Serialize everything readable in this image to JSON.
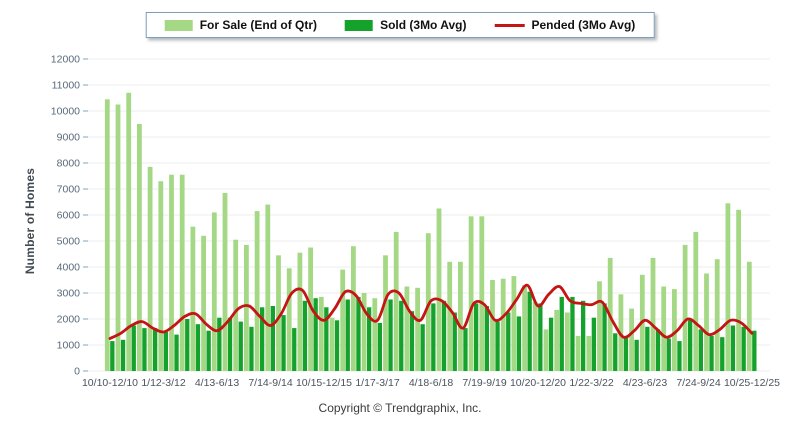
{
  "legend": {
    "items": [
      {
        "id": "forsale",
        "label": "For Sale (End of Qtr)",
        "color": "#A5D885",
        "swatch": "box"
      },
      {
        "id": "sold",
        "label": "Sold (3Mo Avg)",
        "color": "#14A22C",
        "swatch": "box"
      },
      {
        "id": "pended",
        "label": "Pended (3Mo Avg)",
        "color": "#C41414",
        "swatch": "line"
      }
    ]
  },
  "y_axis": {
    "title": "Number of Homes"
  },
  "footer": {
    "copyright": "Copyright © Trendgraphix, Inc."
  },
  "colors": {
    "grid": "#ececec",
    "y_tick_text": "#5a6a7a",
    "x_tick_text": "#4a545e",
    "tick_mark": "#a9c4d8",
    "background": "#ffffff"
  },
  "chart_data": {
    "type": "bar",
    "subtype": "grouped-bars-with-line-overlay",
    "title": "",
    "xlabel": "",
    "ylabel": "Number of Homes",
    "ylim": [
      0,
      12000
    ],
    "ytick_step": 1000,
    "yticks": [
      0,
      1000,
      2000,
      3000,
      4000,
      5000,
      6000,
      7000,
      8000,
      9000,
      10000,
      11000,
      12000
    ],
    "grid": true,
    "legend_position": "top-center",
    "n_points": 61,
    "x_axis_labels": [
      {
        "index": 0,
        "label": "10/10-12/10"
      },
      {
        "index": 5,
        "label": "1/12-3/12"
      },
      {
        "index": 10,
        "label": "4/13-6/13"
      },
      {
        "index": 15,
        "label": "7/14-9/14"
      },
      {
        "index": 20,
        "label": "10/15-12/15"
      },
      {
        "index": 25,
        "label": "1/17-3/17"
      },
      {
        "index": 30,
        "label": "4/18-6/18"
      },
      {
        "index": 35,
        "label": "7/19-9/19"
      },
      {
        "index": 40,
        "label": "10/20-12/20"
      },
      {
        "index": 45,
        "label": "1/22-3/22"
      },
      {
        "index": 50,
        "label": "4/23-6/23"
      },
      {
        "index": 55,
        "label": "7/24-9/24"
      },
      {
        "index": 60,
        "label": "10/25-12/25"
      }
    ],
    "series": [
      {
        "name": "For Sale (End of Qtr)",
        "type": "bar",
        "color": "#A5D885",
        "values": [
          10450,
          10250,
          10700,
          9500,
          7850,
          7300,
          7550,
          7550,
          5550,
          5200,
          6100,
          6850,
          5050,
          4850,
          6150,
          6400,
          4450,
          3950,
          4550,
          4750,
          2850,
          2050,
          3900,
          4800,
          3000,
          2800,
          4450,
          5350,
          3250,
          3200,
          5300,
          6250,
          4200,
          4200,
          5950,
          5950,
          3500,
          3550,
          3650,
          3300,
          2650,
          1600,
          2350,
          2250,
          1350,
          1350,
          3450,
          4350,
          2950,
          2400,
          3700,
          4350,
          3250,
          3150,
          4850,
          5350,
          3750,
          4300,
          6450,
          6200,
          4200
        ]
      },
      {
        "name": "Sold (3Mo Avg)",
        "type": "bar",
        "color": "#14A22C",
        "values": [
          1150,
          1200,
          1750,
          1650,
          1650,
          1500,
          1400,
          2000,
          1800,
          1550,
          2050,
          2050,
          1900,
          1700,
          2450,
          2500,
          2150,
          1650,
          2700,
          2800,
          2450,
          1950,
          2750,
          2850,
          2450,
          1850,
          2750,
          2700,
          2300,
          1800,
          2600,
          2700,
          2250,
          1650,
          2600,
          2500,
          1900,
          2250,
          2100,
          3050,
          2600,
          2050,
          2850,
          2850,
          2700,
          2050,
          2600,
          1450,
          1350,
          1200,
          1700,
          1600,
          1250,
          1150,
          1950,
          1600,
          1350,
          1300,
          1750,
          1700,
          1550
        ]
      },
      {
        "name": "Pended (3Mo Avg)",
        "type": "line",
        "color": "#C41414",
        "values": [
          1250,
          1450,
          1750,
          1900,
          1650,
          1500,
          1750,
          2100,
          2200,
          1800,
          1550,
          1900,
          2400,
          2500,
          2100,
          1750,
          2200,
          3000,
          3100,
          2300,
          1950,
          2400,
          3050,
          2900,
          2200,
          1950,
          2950,
          3000,
          2300,
          1950,
          2700,
          2700,
          2250,
          1650,
          2600,
          2550,
          1950,
          2200,
          2750,
          3300,
          2500,
          2950,
          3250,
          2700,
          2600,
          2550,
          2650,
          1900,
          1300,
          1550,
          1950,
          1650,
          1300,
          1550,
          2000,
          1750,
          1400,
          1600,
          1950,
          1850,
          1450
        ]
      }
    ]
  }
}
